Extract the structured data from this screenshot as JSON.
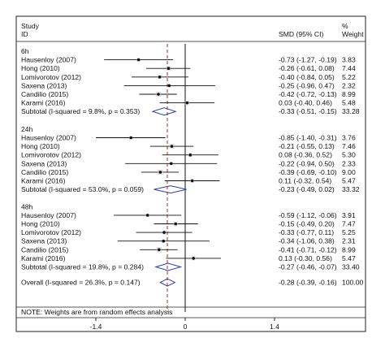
{
  "header": {
    "study_label": "Study",
    "id_label": "ID",
    "smd_label": "SMD (95% CI)",
    "weight_symbol": "%",
    "weight_label": "Weight"
  },
  "chart_data": {
    "type": "forest",
    "xaxis": {
      "ticks": [
        -1.4,
        0,
        1.4
      ],
      "tick_labels": [
        "-1.4",
        "0",
        "1.4"
      ],
      "range": [
        -2.9,
        1.8
      ]
    },
    "overall_reference_line": -0.28,
    "groups": [
      {
        "label": "6h",
        "studies": [
          {
            "name": "Hausenloy (2007)",
            "smd": -0.73,
            "lo": -1.27,
            "hi": -0.19,
            "ci_text": "-0.73 (-1.27, -0.19)",
            "weight": "3.83"
          },
          {
            "name": "Hong (2010)",
            "smd": -0.26,
            "lo": -0.61,
            "hi": 0.08,
            "ci_text": "-0.26 (-0.61, 0.08)",
            "weight": "7.44"
          },
          {
            "name": "Lomivorotov (2012)",
            "smd": -0.4,
            "lo": -0.84,
            "hi": 0.05,
            "ci_text": "-0.40 (-0.84, 0.05)",
            "weight": "5.22"
          },
          {
            "name": "Saxena (2013)",
            "smd": -0.25,
            "lo": -0.96,
            "hi": 0.47,
            "ci_text": "-0.25 (-0.96, 0.47)",
            "weight": "2.32"
          },
          {
            "name": "Candilio (2015)",
            "smd": -0.42,
            "lo": -0.72,
            "hi": -0.13,
            "ci_text": "-0.42 (-0.72, -0.13)",
            "weight": "8.99"
          },
          {
            "name": "Karami (2016)",
            "smd": 0.03,
            "lo": -0.4,
            "hi": 0.46,
            "ci_text": "0.03 (-0.40, 0.46)",
            "weight": "5.48"
          }
        ],
        "subtotal": {
          "label": "Subtotal  (I-squared = 9.8%, p = 0.353)",
          "smd": -0.33,
          "lo": -0.51,
          "hi": -0.15,
          "ci_text": "-0.33 (-0.51, -0.15)",
          "weight": "33.28"
        }
      },
      {
        "label": "24h",
        "studies": [
          {
            "name": "Hausenloy (2007)",
            "smd": -0.85,
            "lo": -1.4,
            "hi": -0.31,
            "ci_text": "-0.85 (-1.40, -0.31)",
            "weight": "3.76"
          },
          {
            "name": "Hong (2010)",
            "smd": -0.21,
            "lo": -0.55,
            "hi": 0.13,
            "ci_text": "-0.21 (-0.55, 0.13)",
            "weight": "7.46"
          },
          {
            "name": "Lomivorotov (2012)",
            "smd": 0.08,
            "lo": -0.36,
            "hi": 0.52,
            "ci_text": "0.08 (-0.36, 0.52)",
            "weight": "5.30"
          },
          {
            "name": "Saxena (2013)",
            "smd": -0.22,
            "lo": -0.94,
            "hi": 0.5,
            "ci_text": "-0.22 (-0.94, 0.50)",
            "weight": "2.33"
          },
          {
            "name": "Candilio (2015)",
            "smd": -0.39,
            "lo": -0.69,
            "hi": -0.1,
            "ci_text": "-0.39 (-0.69, -0.10)",
            "weight": "9.00"
          },
          {
            "name": "Karami (2016)",
            "smd": 0.11,
            "lo": -0.32,
            "hi": 0.54,
            "ci_text": "0.11 (-0.32, 0.54)",
            "weight": "5.47"
          }
        ],
        "subtotal": {
          "label": "Subtotal  (I-squared = 53.0%, p = 0.059)",
          "smd": -0.23,
          "lo": -0.49,
          "hi": 0.02,
          "ci_text": "-0.23 (-0.49, 0.02)",
          "weight": "33.32"
        }
      },
      {
        "label": "48h",
        "studies": [
          {
            "name": "Hausenloy (2007)",
            "smd": -0.59,
            "lo": -1.12,
            "hi": -0.06,
            "ci_text": "-0.59 (-1.12, -0.06)",
            "weight": "3.91"
          },
          {
            "name": "Hong (2010)",
            "smd": -0.15,
            "lo": -0.49,
            "hi": 0.2,
            "ci_text": "-0.15 (-0.49, 0.20)",
            "weight": "7.47"
          },
          {
            "name": "Lomivorotov (2012)",
            "smd": -0.33,
            "lo": -0.77,
            "hi": 0.11,
            "ci_text": "-0.33 (-0.77, 0.11)",
            "weight": "5.25"
          },
          {
            "name": "Saxena (2013)",
            "smd": -0.34,
            "lo": -1.06,
            "hi": 0.38,
            "ci_text": "-0.34 (-1.06, 0.38)",
            "weight": "2.31"
          },
          {
            "name": "Candilio (2015)",
            "smd": -0.41,
            "lo": -0.71,
            "hi": -0.12,
            "ci_text": "-0.41 (-0.71, -0.12)",
            "weight": "8.99"
          },
          {
            "name": "Karami (2016)",
            "smd": 0.13,
            "lo": -0.3,
            "hi": 0.56,
            "ci_text": "0.13 (-0.30, 0.56)",
            "weight": "5.47"
          }
        ],
        "subtotal": {
          "label": "Subtotal  (I-squared = 19.8%, p = 0.284)",
          "smd": -0.27,
          "lo": -0.46,
          "hi": -0.07,
          "ci_text": "-0.27 (-0.46, -0.07)",
          "weight": "33.40"
        }
      }
    ],
    "overall": {
      "label": "Overall  (I-squared = 26.3%, p = 0.147)",
      "smd": -0.28,
      "lo": -0.39,
      "hi": -0.16,
      "ci_text": "-0.28 (-0.39, -0.16)",
      "weight": "100.00"
    },
    "note": "NOTE: Weights are from random effects analysis"
  }
}
